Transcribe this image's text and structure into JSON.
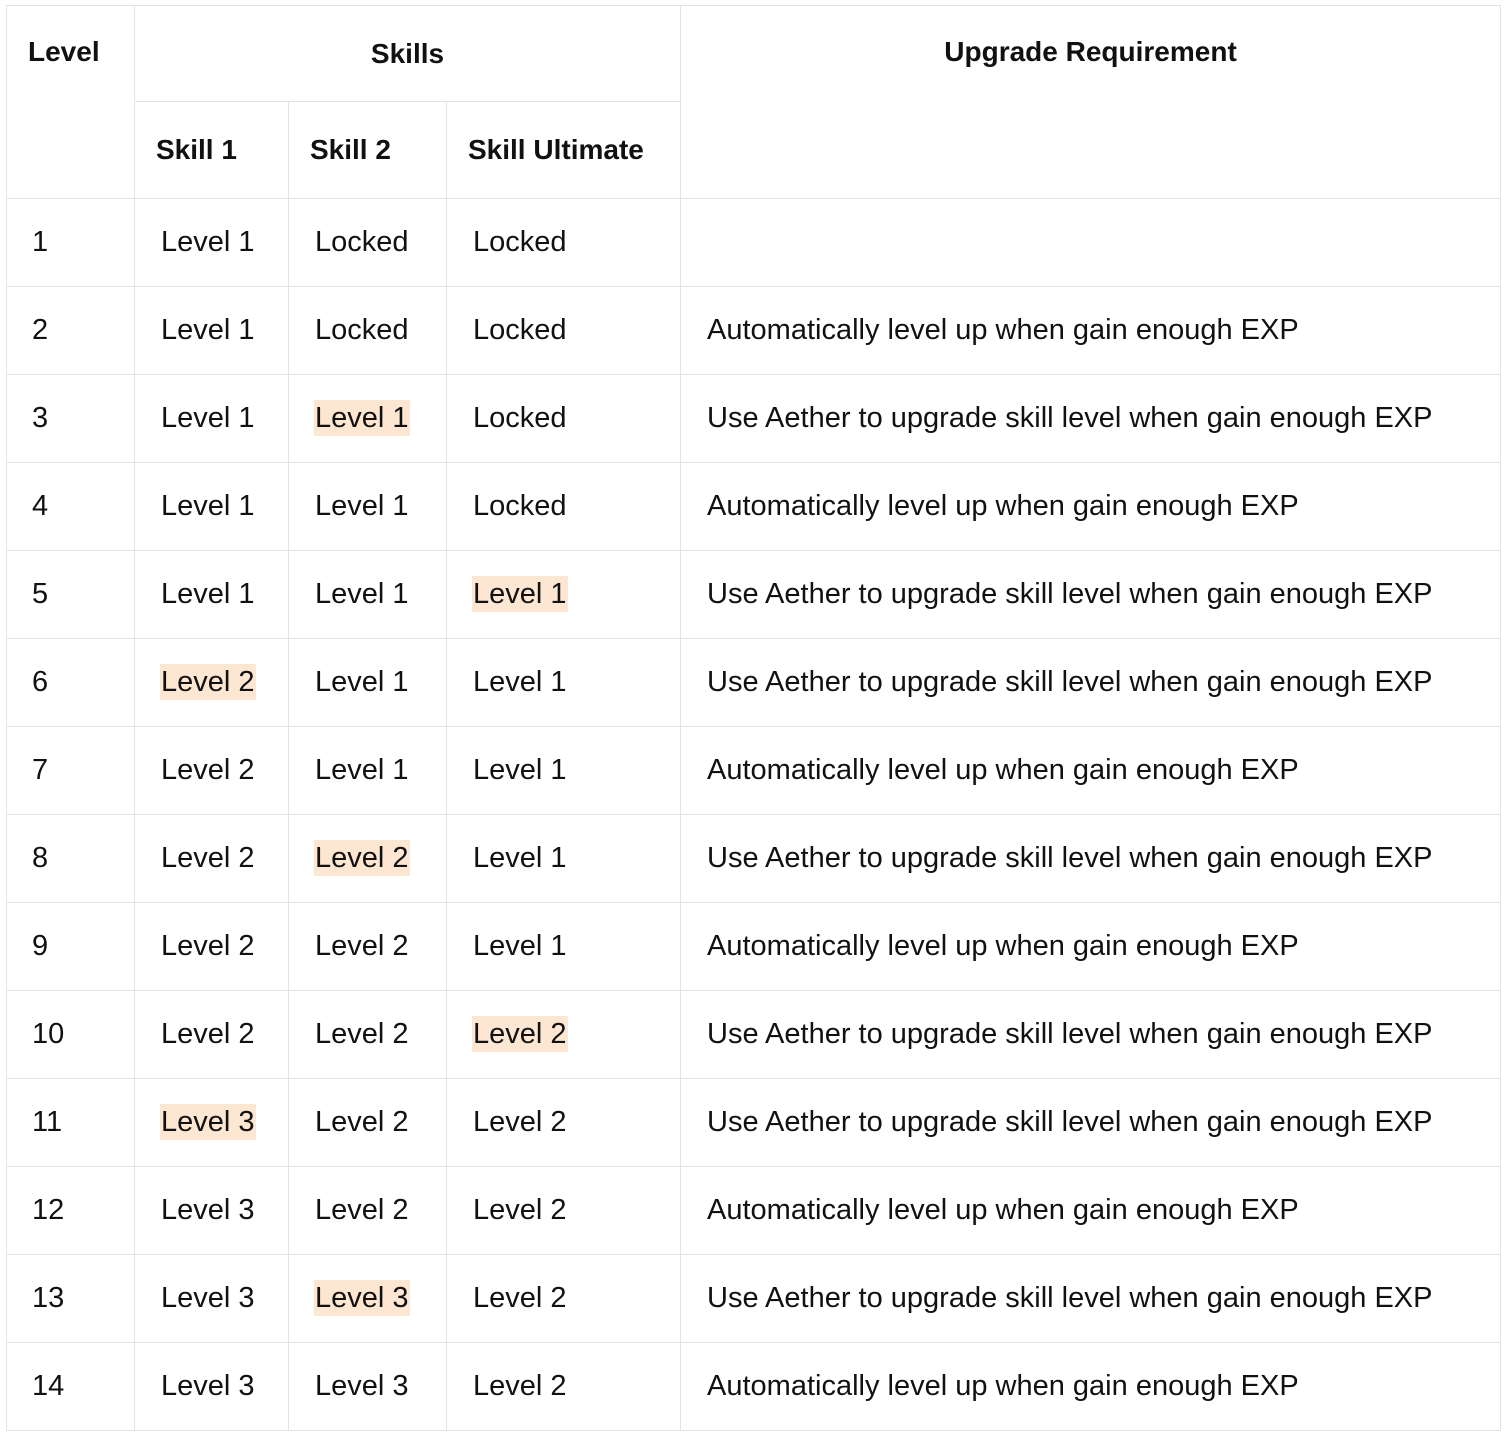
{
  "header": {
    "level": "Level",
    "skills": "Skills",
    "upgrade_requirement": "Upgrade Requirement",
    "skill_1": "Skill 1",
    "skill_2": "Skill 2",
    "skill_ultimate": "Skill Ultimate"
  },
  "highlight_color": "#fde6d2",
  "rows": [
    {
      "level": "1",
      "skill_1": {
        "text": "Level 1",
        "highlight": false
      },
      "skill_2": {
        "text": "Locked",
        "highlight": false
      },
      "skill_ultimate": {
        "text": "Locked",
        "highlight": false
      },
      "requirement": ""
    },
    {
      "level": "2",
      "skill_1": {
        "text": "Level 1",
        "highlight": false
      },
      "skill_2": {
        "text": "Locked",
        "highlight": false
      },
      "skill_ultimate": {
        "text": "Locked",
        "highlight": false
      },
      "requirement": "Automatically level up when gain enough EXP"
    },
    {
      "level": "3",
      "skill_1": {
        "text": "Level 1",
        "highlight": false
      },
      "skill_2": {
        "text": "Level 1",
        "highlight": true
      },
      "skill_ultimate": {
        "text": "Locked",
        "highlight": false
      },
      "requirement": "Use Aether to upgrade skill level when gain enough EXP"
    },
    {
      "level": "4",
      "skill_1": {
        "text": "Level 1",
        "highlight": false
      },
      "skill_2": {
        "text": "Level 1",
        "highlight": false
      },
      "skill_ultimate": {
        "text": "Locked",
        "highlight": false
      },
      "requirement": "Automatically level up when gain enough EXP"
    },
    {
      "level": "5",
      "skill_1": {
        "text": "Level 1",
        "highlight": false
      },
      "skill_2": {
        "text": "Level 1",
        "highlight": false
      },
      "skill_ultimate": {
        "text": "Level 1",
        "highlight": true
      },
      "requirement": "Use Aether to upgrade skill level when gain enough EXP"
    },
    {
      "level": "6",
      "skill_1": {
        "text": "Level 2",
        "highlight": true
      },
      "skill_2": {
        "text": "Level 1",
        "highlight": false
      },
      "skill_ultimate": {
        "text": "Level 1",
        "highlight": false
      },
      "requirement": "Use Aether to upgrade skill level when gain enough EXP"
    },
    {
      "level": "7",
      "skill_1": {
        "text": "Level 2",
        "highlight": false
      },
      "skill_2": {
        "text": "Level 1",
        "highlight": false
      },
      "skill_ultimate": {
        "text": "Level 1",
        "highlight": false
      },
      "requirement": "Automatically level up when gain enough EXP"
    },
    {
      "level": "8",
      "skill_1": {
        "text": "Level 2",
        "highlight": false
      },
      "skill_2": {
        "text": "Level 2",
        "highlight": true
      },
      "skill_ultimate": {
        "text": "Level 1",
        "highlight": false
      },
      "requirement": "Use Aether to upgrade skill level when gain enough EXP"
    },
    {
      "level": "9",
      "skill_1": {
        "text": "Level 2",
        "highlight": false
      },
      "skill_2": {
        "text": "Level 2",
        "highlight": false
      },
      "skill_ultimate": {
        "text": "Level 1",
        "highlight": false
      },
      "requirement": "Automatically level up when gain enough EXP"
    },
    {
      "level": "10",
      "skill_1": {
        "text": "Level 2",
        "highlight": false
      },
      "skill_2": {
        "text": "Level 2",
        "highlight": false
      },
      "skill_ultimate": {
        "text": "Level 2",
        "highlight": true
      },
      "requirement": "Use Aether to upgrade skill level when gain enough EXP"
    },
    {
      "level": "11",
      "skill_1": {
        "text": "Level 3",
        "highlight": true
      },
      "skill_2": {
        "text": "Level 2",
        "highlight": false
      },
      "skill_ultimate": {
        "text": "Level 2",
        "highlight": false
      },
      "requirement": "Use Aether to upgrade skill level when gain enough EXP"
    },
    {
      "level": "12",
      "skill_1": {
        "text": "Level 3",
        "highlight": false
      },
      "skill_2": {
        "text": "Level 2",
        "highlight": false
      },
      "skill_ultimate": {
        "text": "Level 2",
        "highlight": false
      },
      "requirement": "Automatically level up when gain enough EXP"
    },
    {
      "level": "13",
      "skill_1": {
        "text": "Level 3",
        "highlight": false
      },
      "skill_2": {
        "text": "Level 3",
        "highlight": true
      },
      "skill_ultimate": {
        "text": "Level 2",
        "highlight": false
      },
      "requirement": "Use Aether to upgrade skill level when gain enough EXP"
    },
    {
      "level": "14",
      "skill_1": {
        "text": "Level 3",
        "highlight": false
      },
      "skill_2": {
        "text": "Level 3",
        "highlight": false
      },
      "skill_ultimate": {
        "text": "Level 2",
        "highlight": false
      },
      "requirement": "Automatically level up when gain enough EXP"
    }
  ]
}
